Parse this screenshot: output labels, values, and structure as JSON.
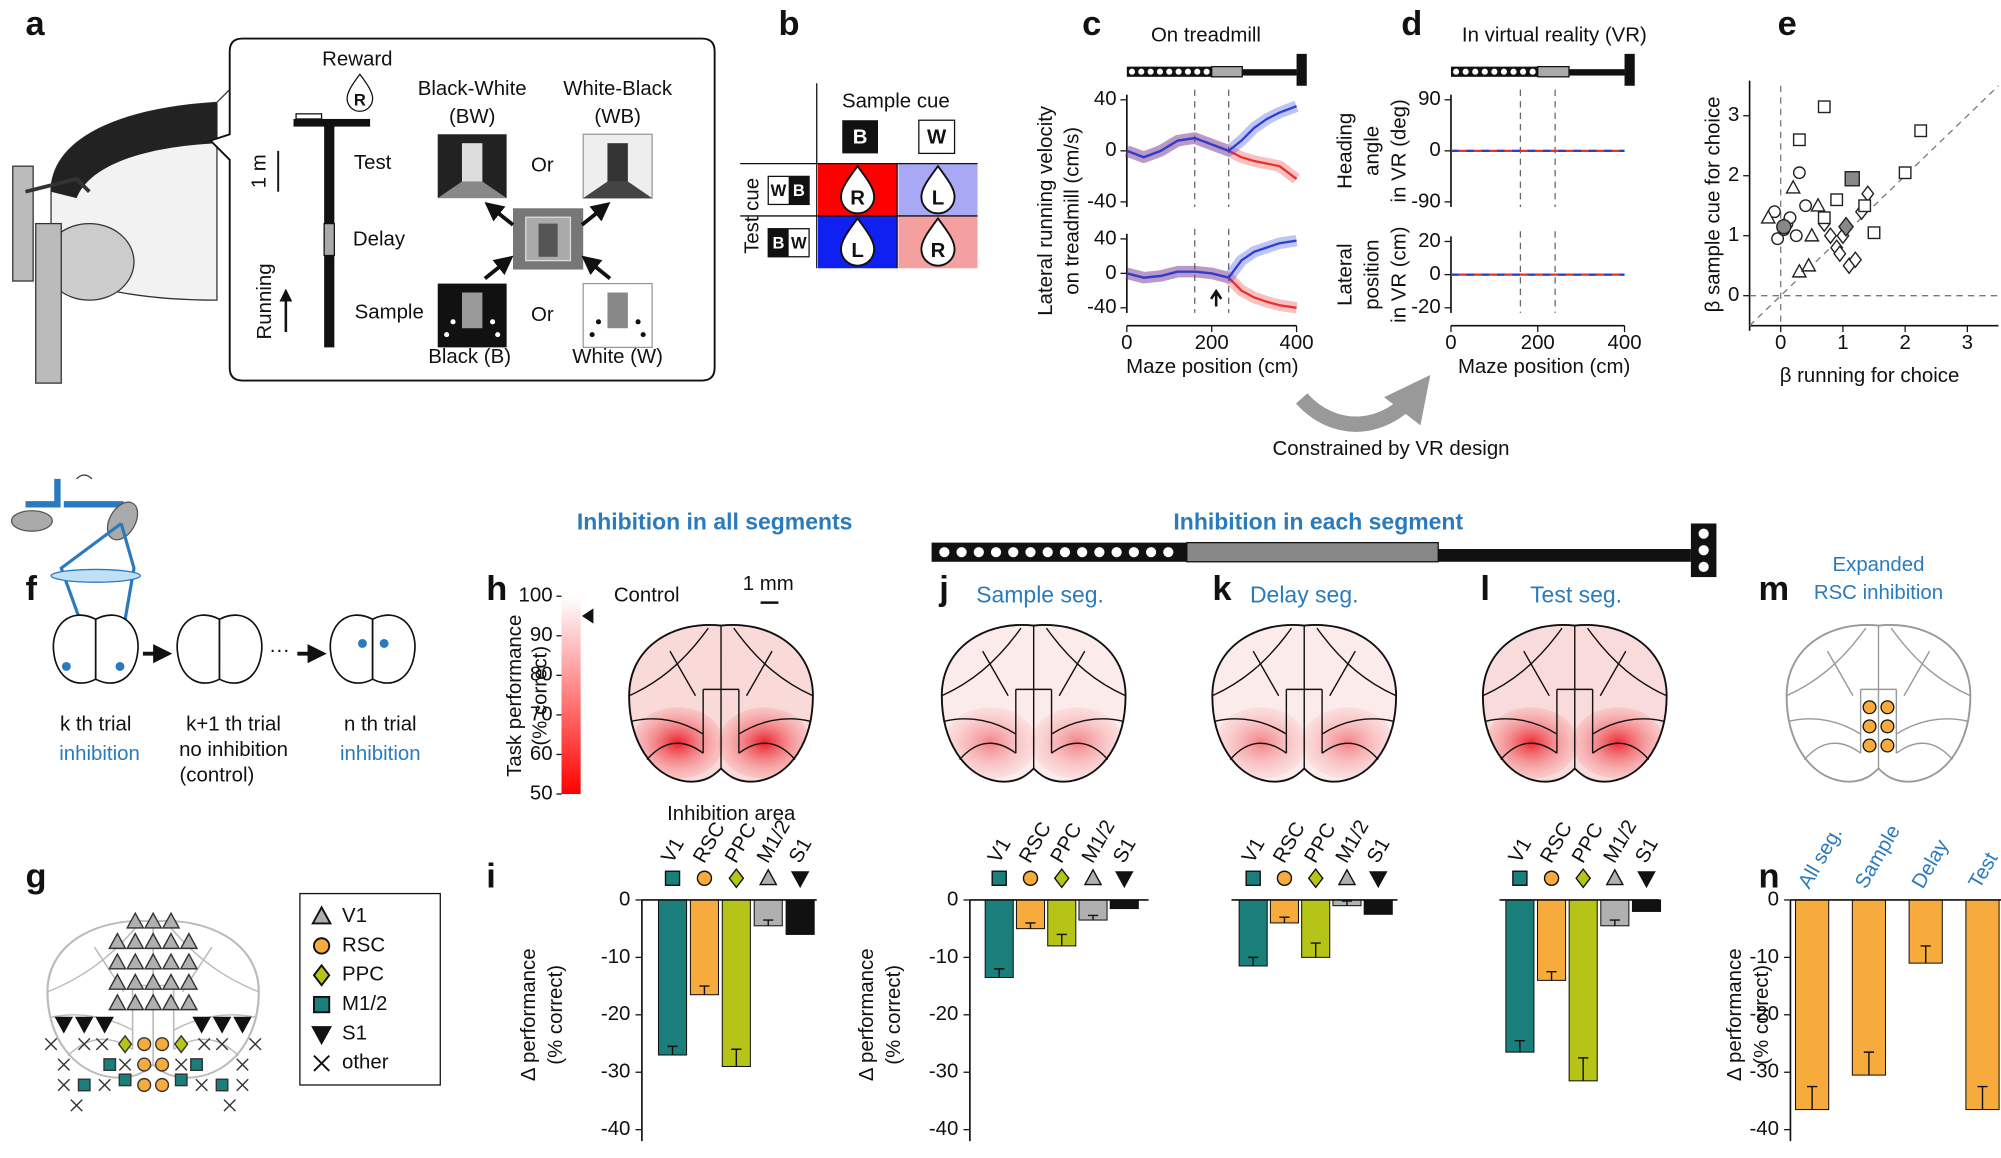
{
  "panel_labels": [
    "a",
    "b",
    "c",
    "d",
    "e",
    "f",
    "g",
    "h",
    "i",
    "j",
    "k",
    "l",
    "m",
    "n"
  ],
  "a": {
    "reward": "Reward",
    "reward_cue": "R",
    "scale": "1 m",
    "test": "Test",
    "delay": "Delay",
    "sample": "Sample",
    "running": "Running",
    "bw": [
      "Black-White",
      "(BW)"
    ],
    "wb": [
      "White-Black",
      "(WB)"
    ],
    "or": [
      "Or",
      "Or"
    ],
    "black": "Black (B)",
    "white": "White (W)"
  },
  "b": {
    "sample_cue": "Sample cue",
    "sample_headers": [
      "B",
      "W"
    ],
    "test_cue": "Test cue",
    "test_rows": [
      [
        "W",
        "B"
      ],
      [
        "B",
        "W"
      ]
    ],
    "choices": [
      [
        "R",
        "L"
      ],
      [
        "L",
        "R"
      ]
    ]
  },
  "constrained": "Constrained by VR design",
  "f": {
    "trials": [
      {
        "label": "k th trial",
        "state": [
          "inhibition"
        ]
      },
      {
        "label": "k+1 th trial",
        "state": [
          "no inhibition",
          "(control)"
        ]
      },
      {
        "label": "n th trial",
        "state": [
          "inhibition"
        ]
      }
    ],
    "ellipsis": "···"
  },
  "g": {
    "legend": [
      "V1",
      "RSC",
      "PPC",
      "M1/2",
      "S1",
      "other"
    ]
  },
  "headers": [
    "Inhibition in all segments",
    "Inhibition in each segment"
  ],
  "h": {
    "control": "Control",
    "scale": "1 mm",
    "colorbar_label": [
      "Task performance",
      "(% correct)"
    ],
    "colorbar": {
      "lim": [
        50,
        100
      ],
      "ticks": [
        100,
        90,
        80,
        70,
        60,
        50
      ],
      "control": 95
    }
  },
  "segments": [
    "Sample seg.",
    "Delay seg.",
    "Test seg."
  ],
  "m": [
    "Expanded",
    "RSC inhibition"
  ],
  "chart_data": [
    {
      "type": "line",
      "title": "On treadmill",
      "ylabel": [
        "Lateral running velocity",
        "on treadmill (cm/s)"
      ],
      "x": [
        0,
        40,
        80,
        120,
        160,
        200,
        240,
        270,
        300,
        330,
        360,
        400
      ],
      "xlim": [
        0,
        400
      ],
      "ylim": [
        -40,
        40
      ],
      "yticks": [
        40,
        0,
        -40
      ],
      "vlines": [
        160,
        240
      ],
      "series": [
        {
          "color": "#e8312f",
          "values": [
            0,
            -5,
            0,
            8,
            10,
            5,
            0,
            -5,
            -8,
            -10,
            -12,
            -22
          ]
        },
        {
          "color": "#2b3fd4",
          "values": [
            0,
            -5,
            0,
            8,
            10,
            5,
            0,
            8,
            18,
            25,
            30,
            35
          ]
        }
      ]
    },
    {
      "type": "line",
      "xlabel": "Maze position (cm)",
      "x": [
        0,
        40,
        80,
        120,
        160,
        200,
        240,
        270,
        300,
        330,
        360,
        400
      ],
      "xlim": [
        0,
        400
      ],
      "ylim": [
        -40,
        40
      ],
      "yticks": [
        40,
        0,
        -40
      ],
      "xticks": [
        0,
        200,
        400
      ],
      "vlines": [
        160,
        240
      ],
      "series": [
        {
          "color": "#e8312f",
          "values": [
            0,
            -5,
            -3,
            2,
            2,
            0,
            -5,
            -20,
            -28,
            -33,
            -37,
            -40
          ]
        },
        {
          "color": "#2b3fd4",
          "values": [
            0,
            -5,
            -3,
            2,
            2,
            0,
            -5,
            15,
            25,
            30,
            35,
            38
          ]
        }
      ]
    },
    {
      "type": "line",
      "title": "In virtual reality (VR)",
      "ylabel": [
        "Heading",
        "angle",
        "in VR (deg)"
      ],
      "x": [
        0,
        400
      ],
      "xlim": [
        0,
        400
      ],
      "ylim": [
        -90,
        90
      ],
      "yticks": [
        90,
        0,
        -90
      ],
      "vlines": [
        160,
        240
      ],
      "dashed": true,
      "series": [
        {
          "color": "#e8312f",
          "values": [
            0,
            0
          ]
        },
        {
          "color": "#2b3fd4",
          "values": [
            0,
            0
          ]
        }
      ]
    },
    {
      "type": "line",
      "xlabel": "Maze position (cm)",
      "ylabel": [
        "Lateral",
        "position",
        "in VR (cm)"
      ],
      "x": [
        0,
        400
      ],
      "xlim": [
        0,
        400
      ],
      "ylim": [
        -20,
        20
      ],
      "yticks": [
        20,
        0,
        -20
      ],
      "xticks": [
        0,
        200,
        400
      ],
      "vlines": [
        160,
        240
      ],
      "dashed": true,
      "series": [
        {
          "color": "#e8312f",
          "values": [
            0,
            0
          ]
        },
        {
          "color": "#2b3fd4",
          "values": [
            0,
            0
          ]
        }
      ]
    },
    {
      "type": "scatter",
      "xlabel": "β running for choice",
      "ylabel": [
        "β sample cue for choice"
      ],
      "xlim": [
        -0.5,
        3.5
      ],
      "ylim": [
        -0.5,
        3.5
      ],
      "xticks": [
        0,
        1,
        2,
        3
      ],
      "yticks": [
        0,
        1,
        2,
        3
      ],
      "series": [
        {
          "marker": "circle",
          "color": "#ffffff",
          "x": [
            0.1,
            -0.05,
            0.25,
            0.3,
            0.15,
            -0.1,
            0.05,
            0.4
          ],
          "values": [
            1.2,
            0.95,
            1.0,
            2.05,
            1.3,
            1.4,
            1.1,
            1.5
          ]
        },
        {
          "marker": "triangle",
          "color": "#ffffff",
          "x": [
            -0.2,
            0.2,
            0.3,
            0.5,
            0.6,
            0.45
          ],
          "values": [
            1.3,
            1.8,
            0.4,
            1.0,
            1.5,
            0.5
          ]
        },
        {
          "marker": "diamond",
          "color": "#ffffff",
          "x": [
            0.7,
            0.9,
            1.0,
            1.1,
            1.3,
            1.2,
            0.8,
            1.4,
            0.95
          ],
          "values": [
            1.2,
            0.8,
            1.0,
            0.5,
            1.4,
            0.6,
            1.0,
            1.7,
            0.7
          ]
        },
        {
          "marker": "square",
          "color": "#ffffff",
          "x": [
            0.7,
            0.3,
            0.7,
            1.5,
            2.0,
            2.25,
            1.35,
            0.9
          ],
          "values": [
            3.15,
            2.6,
            1.3,
            1.05,
            2.05,
            2.75,
            1.5,
            1.6
          ]
        },
        {
          "marker": "square",
          "color": "#888888",
          "x": [
            1.15
          ],
          "values": [
            1.95
          ]
        },
        {
          "marker": "circle",
          "color": "#888888",
          "x": [
            0.05
          ],
          "values": [
            1.15
          ]
        },
        {
          "marker": "diamond",
          "color": "#888888",
          "x": [
            1.05
          ],
          "values": [
            1.15
          ]
        }
      ]
    },
    {
      "type": "bar",
      "xlabel": "Inhibition area",
      "ylabel": [
        "Δ performance",
        "(% correct)"
      ],
      "categories": [
        "V1",
        "RSC",
        "PPC",
        "M1/2",
        "S1"
      ],
      "values": [
        -27,
        -16.5,
        -29,
        -4.5,
        -6
      ],
      "errors": [
        1.5,
        1.5,
        3,
        1,
        1.5
      ],
      "colors": [
        "#1a7f7a",
        "#f7ab3c",
        "#b5c416",
        "#b0b0b0",
        "#111111"
      ],
      "markers": [
        "square",
        "circle",
        "diamond",
        "triangle",
        "triangle-down"
      ],
      "ylim": [
        -42,
        0
      ],
      "yticks": [
        0,
        -10,
        -20,
        -30,
        -40
      ]
    },
    {
      "type": "bar",
      "ylabel": [
        "Δ performance",
        "(% correct)"
      ],
      "categories": [
        "V1",
        "RSC",
        "PPC",
        "M1/2",
        "S1"
      ],
      "values": [
        -13.5,
        -5,
        -8,
        -3.5,
        -1.5
      ],
      "errors": [
        1.5,
        1,
        2,
        0.8,
        0.8
      ],
      "colors": [
        "#1a7f7a",
        "#f7ab3c",
        "#b5c416",
        "#b0b0b0",
        "#111111"
      ],
      "markers": [
        "square",
        "circle",
        "diamond",
        "triangle",
        "triangle-down"
      ],
      "ylim": [
        -42,
        0
      ],
      "yticks": [
        0,
        -10,
        -20,
        -30,
        -40
      ]
    },
    {
      "type": "bar",
      "categories": [
        "V1",
        "RSC",
        "PPC",
        "M1/2",
        "S1"
      ],
      "values": [
        -11.5,
        -4,
        -10,
        -1,
        -2.5
      ],
      "errors": [
        1.5,
        1,
        2.5,
        0.8,
        0.8
      ],
      "colors": [
        "#1a7f7a",
        "#f7ab3c",
        "#b5c416",
        "#b0b0b0",
        "#111111"
      ],
      "markers": [
        "square",
        "circle",
        "diamond",
        "triangle",
        "triangle-down"
      ],
      "ylim": [
        -42,
        0
      ]
    },
    {
      "type": "bar",
      "categories": [
        "V1",
        "RSC",
        "PPC",
        "M1/2",
        "S1"
      ],
      "values": [
        -26.5,
        -14,
        -31.5,
        -4.5,
        -2
      ],
      "errors": [
        2,
        1.5,
        4,
        1,
        1
      ],
      "colors": [
        "#1a7f7a",
        "#f7ab3c",
        "#b5c416",
        "#b0b0b0",
        "#111111"
      ],
      "markers": [
        "square",
        "circle",
        "diamond",
        "triangle",
        "triangle-down"
      ],
      "ylim": [
        -42,
        0
      ]
    },
    {
      "type": "bar",
      "ylabel": [
        "Δ performance",
        "(% correct)"
      ],
      "categories": [
        "All seg.",
        "Sample",
        "Delay",
        "Test"
      ],
      "values": [
        -36.5,
        -30.5,
        -11,
        -36.5
      ],
      "errors": [
        4,
        4,
        3,
        4
      ],
      "colors": [
        "#f7ab3c",
        "#f7ab3c",
        "#f7ab3c",
        "#f7ab3c"
      ],
      "ylim": [
        -42,
        0
      ],
      "yticks": [
        0,
        -10,
        -20,
        -30,
        -40
      ]
    }
  ]
}
